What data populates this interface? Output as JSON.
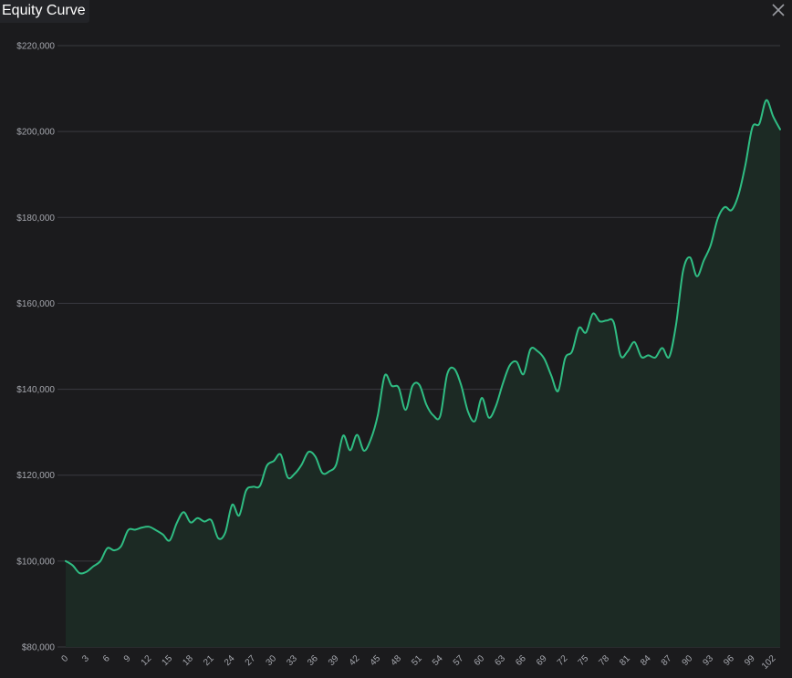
{
  "window": {
    "title": "Equity Curve",
    "close_icon": "close-icon"
  },
  "colors": {
    "background": "#1b1b1d",
    "line": "#2fbd83",
    "area": "#1c2a24",
    "grid": "#3a3b40",
    "tick_text": "#a4a6ad"
  },
  "chart_data": {
    "type": "area",
    "title": "Equity Curve",
    "xlabel": "",
    "ylabel": "",
    "grid": true,
    "legend": "none",
    "xlim": [
      0,
      103
    ],
    "ylim": [
      80000,
      220000
    ],
    "y_ticks": [
      80000,
      100000,
      120000,
      140000,
      160000,
      180000,
      200000,
      220000
    ],
    "y_tick_labels": [
      "$80,000",
      "$100,000",
      "$120,000",
      "$140,000",
      "$160,000",
      "$180,000",
      "$200,000",
      "$220,000"
    ],
    "x_ticks": [
      0,
      3,
      6,
      9,
      12,
      15,
      18,
      21,
      24,
      27,
      30,
      33,
      36,
      39,
      42,
      45,
      48,
      51,
      54,
      57,
      60,
      63,
      66,
      69,
      72,
      75,
      78,
      81,
      84,
      87,
      90,
      93,
      96,
      99,
      102
    ],
    "x_tick_labels": [
      "0",
      "3",
      "6",
      "9",
      "12",
      "15",
      "18",
      "21",
      "24",
      "27",
      "30",
      "33",
      "36",
      "39",
      "42",
      "45",
      "48",
      "51",
      "54",
      "57",
      "60",
      "63",
      "66",
      "69",
      "72",
      "75",
      "78",
      "81",
      "84",
      "87",
      "90",
      "93",
      "96",
      "99",
      "102"
    ],
    "x": [
      0,
      1,
      2,
      3,
      4,
      5,
      6,
      7,
      8,
      9,
      10,
      11,
      12,
      13,
      14,
      15,
      16,
      17,
      18,
      19,
      20,
      21,
      22,
      23,
      24,
      25,
      26,
      27,
      28,
      29,
      30,
      31,
      32,
      33,
      34,
      35,
      36,
      37,
      38,
      39,
      40,
      41,
      42,
      43,
      44,
      45,
      46,
      47,
      48,
      49,
      50,
      51,
      52,
      53,
      54,
      55,
      56,
      57,
      58,
      59,
      60,
      61,
      62,
      63,
      64,
      65,
      66,
      67,
      68,
      69,
      70,
      71,
      72,
      73,
      74,
      75,
      76,
      77,
      78,
      79,
      80,
      81,
      82,
      83,
      84,
      85,
      86,
      87,
      88,
      89,
      90,
      91,
      92,
      93,
      94,
      95,
      96,
      97,
      98,
      99,
      100,
      101,
      102,
      103
    ],
    "values": [
      100000,
      99000,
      97200,
      97500,
      98800,
      100000,
      103000,
      102500,
      103500,
      107200,
      107300,
      107800,
      108000,
      107200,
      106200,
      104800,
      108800,
      111400,
      109000,
      110000,
      109200,
      109500,
      105300,
      106600,
      113100,
      110600,
      116400,
      117300,
      117500,
      122200,
      123300,
      124800,
      119500,
      120300,
      122400,
      125400,
      124300,
      120500,
      120900,
      122500,
      129200,
      125800,
      129400,
      125700,
      128400,
      134000,
      143200,
      140800,
      140400,
      135200,
      140800,
      141000,
      136400,
      133900,
      133800,
      143500,
      144800,
      141000,
      134800,
      132600,
      138000,
      133400,
      136000,
      141200,
      145500,
      146400,
      143500,
      149300,
      148900,
      147100,
      143200,
      139600,
      147200,
      148800,
      154300,
      153200,
      157600,
      155800,
      156000,
      155600,
      147800,
      148800,
      151000,
      147500,
      147900,
      147400,
      149600,
      147500,
      155100,
      167500,
      170700,
      166300,
      170000,
      173600,
      179700,
      182400,
      181700,
      185300,
      192300,
      201000,
      201800,
      207300,
      203500,
      200500
    ]
  }
}
